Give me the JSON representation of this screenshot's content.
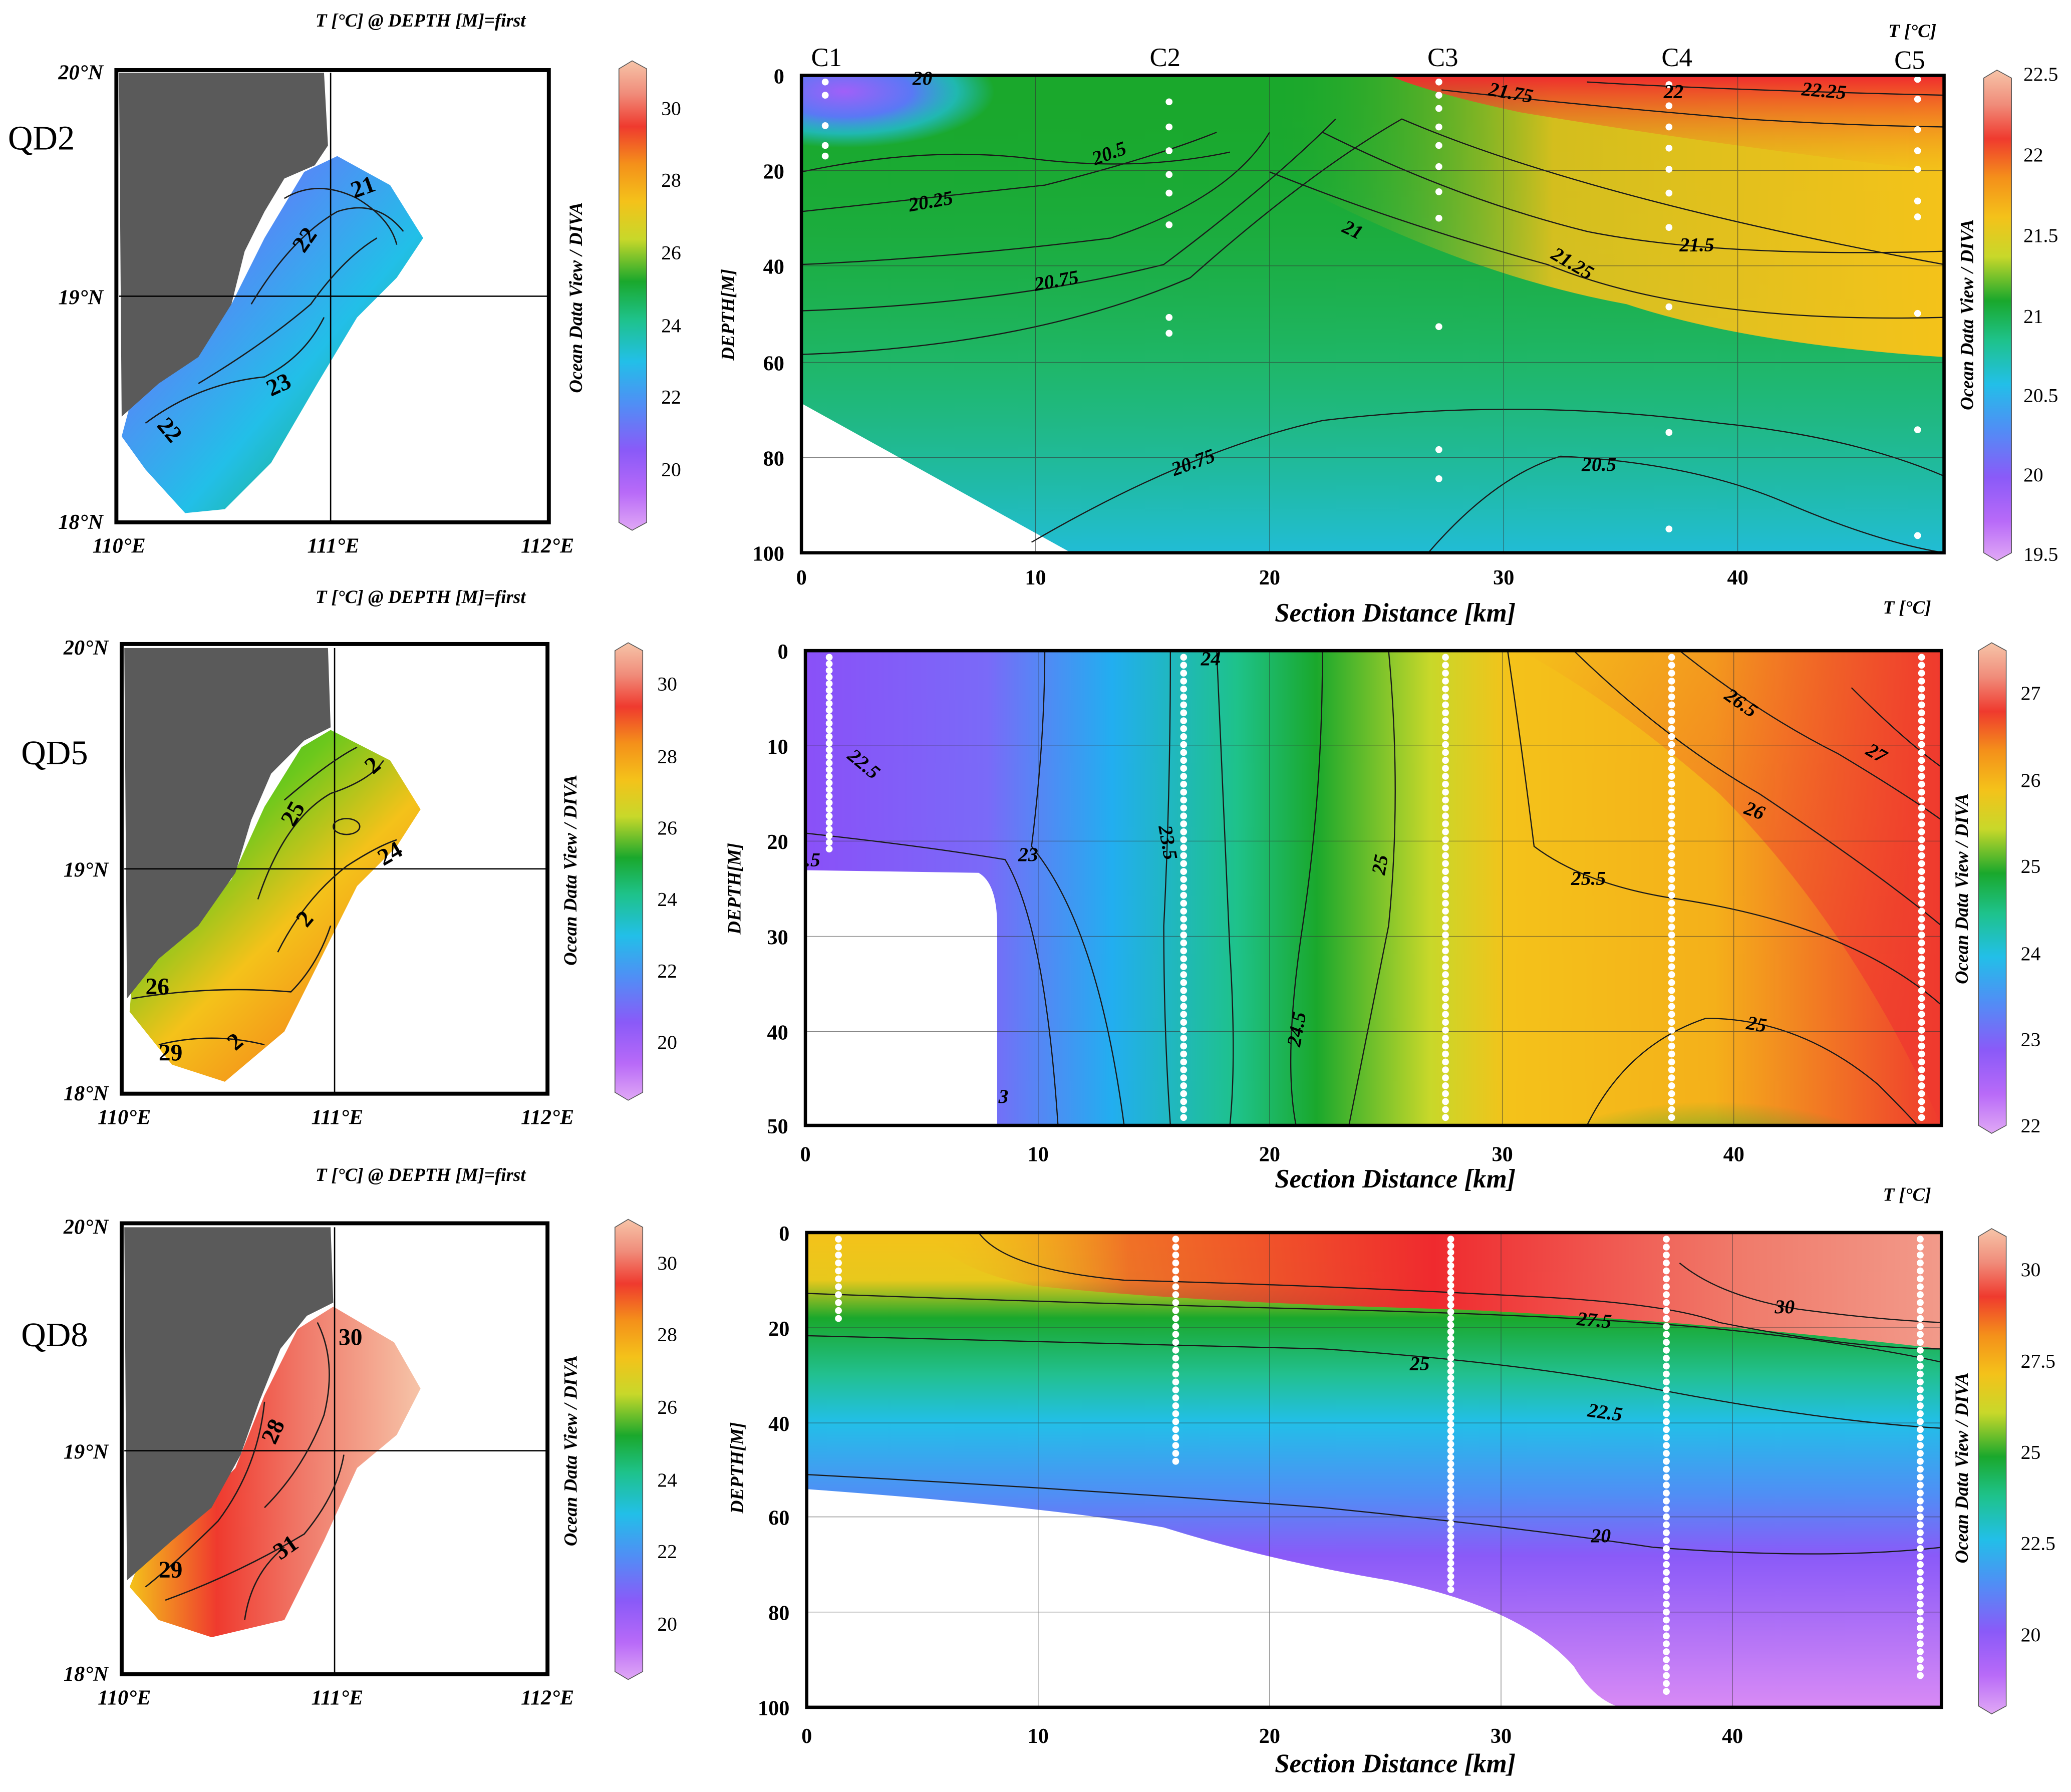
{
  "colors": {
    "land": "#5a5a5a",
    "frame": "#000000",
    "contour": "#1a1a1a",
    "station_dot": "#ffffff",
    "ramp": [
      "#e0a8f5",
      "#b86af8",
      "#8a5af8",
      "#4f8ff5",
      "#22bfe8",
      "#1ec28a",
      "#1aa82c",
      "#6cc81c",
      "#c8d82a",
      "#f4c21a",
      "#f4901a",
      "#ef3a2e",
      "#f08c7a",
      "#f6c4a8"
    ]
  },
  "labels": {
    "map_title": "T [°C] @ DEPTH [M]=first",
    "odv": "Ocean Data View / DIVA",
    "unit": "T [°C]",
    "xlabel": "Section Distance [km]",
    "ylabel": "DEPTH[M]",
    "map_lon_ticks": [
      "110°E",
      "111°E",
      "112°E"
    ],
    "map_lat_ticks": [
      "20°N",
      "19°N",
      "18°N"
    ]
  },
  "maps": [
    {
      "label": "QD2",
      "contour_labels": [
        "21",
        "22",
        "23",
        "22"
      ],
      "colorbar_ticks": [
        "30",
        "28",
        "26",
        "24",
        "22",
        "20"
      ]
    },
    {
      "label": "QD5",
      "contour_labels": [
        "25",
        "2",
        "26",
        "29",
        "2",
        "24",
        "2"
      ],
      "colorbar_ticks": [
        "30",
        "28",
        "26",
        "24",
        "22",
        "20"
      ]
    },
    {
      "label": "QD8",
      "contour_labels": [
        "30",
        "28",
        "29",
        "31"
      ],
      "colorbar_ticks": [
        "30",
        "28",
        "26",
        "24",
        "22",
        "20"
      ]
    }
  ],
  "sections": [
    {
      "id": "QD2",
      "stations": [
        "C1",
        "C2",
        "C3",
        "C4",
        "C5"
      ],
      "y_ticks": [
        "0",
        "20",
        "40",
        "60",
        "80",
        "100"
      ],
      "x_ticks": [
        "0",
        "10",
        "20",
        "30",
        "40"
      ],
      "contour_labels": [
        "20",
        "20.25",
        "20.5",
        "20.75",
        "21",
        "21.25",
        "21.5",
        "21.75",
        "22",
        "22.25",
        "20.75",
        "20.5"
      ],
      "colorbar_ticks": [
        "22.5",
        "22",
        "21.5",
        "21",
        "20.5",
        "20",
        "19.5"
      ]
    },
    {
      "id": "QD5",
      "y_ticks": [
        "0",
        "10",
        "20",
        "30",
        "40",
        "50"
      ],
      "x_ticks": [
        "0",
        "10",
        "20",
        "30",
        "40"
      ],
      "contour_labels": [
        "22.5",
        "23",
        "23.5",
        "24",
        "25",
        "24.5",
        "25.5",
        "26",
        "26.5",
        "27",
        "25"
      ],
      "colorbar_ticks": [
        "27",
        "26",
        "25",
        "24",
        "23",
        "22"
      ]
    },
    {
      "id": "QD8",
      "y_ticks": [
        "0",
        "20",
        "40",
        "60",
        "80",
        "100"
      ],
      "x_ticks": [
        "0",
        "10",
        "20",
        "30",
        "40"
      ],
      "contour_labels": [
        "27.5",
        "30",
        "25",
        "22.5",
        "20"
      ],
      "colorbar_ticks": [
        "30",
        "27.5",
        "25",
        "22.5",
        "20"
      ]
    }
  ],
  "chart_data": [
    {
      "type": "heatmap",
      "title": "QD2",
      "xlabel": "Section Distance [km]",
      "ylabel": "DEPTH[M]",
      "xlim": [
        0,
        49
      ],
      "ylim": [
        100,
        0
      ],
      "clim": [
        19.5,
        22.5
      ],
      "stations": [
        {
          "name": "C1",
          "x": 1
        },
        {
          "name": "C2",
          "x": 15.7
        },
        {
          "name": "C3",
          "x": 27.3
        },
        {
          "name": "C4",
          "x": 37.2
        },
        {
          "name": "C5",
          "x": 48
        }
      ]
    },
    {
      "type": "heatmap",
      "title": "QD5",
      "xlabel": "Section Distance [km]",
      "ylabel": "DEPTH[M]",
      "xlim": [
        0,
        49
      ],
      "ylim": [
        50,
        0
      ],
      "clim": [
        22,
        27.5
      ]
    },
    {
      "type": "heatmap",
      "title": "QD8",
      "xlabel": "Section Distance [km]",
      "ylabel": "DEPTH[M]",
      "xlim": [
        0,
        49
      ],
      "ylim": [
        100,
        0
      ],
      "clim": [
        18,
        31
      ]
    }
  ]
}
